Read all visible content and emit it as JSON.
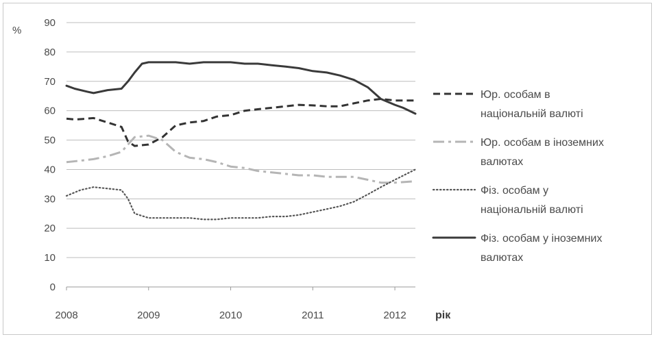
{
  "chart_data": {
    "type": "line",
    "title": "",
    "xlabel": "рік",
    "ylabel": "%",
    "xlim": [
      2008,
      2012.25
    ],
    "ylim": [
      0,
      90
    ],
    "y_ticks": [
      "0",
      "10",
      "20",
      "30",
      "40",
      "50",
      "60",
      "70",
      "80",
      "90"
    ],
    "x_ticks": [
      "2008",
      "2009",
      "2010",
      "2011",
      "2012"
    ],
    "grid": "horizontal",
    "legend_position": "right",
    "series": [
      {
        "name_lines": [
          "Юр. особам в",
          "національній валюті"
        ],
        "style": "dashed",
        "color": "#333333",
        "points": [
          [
            2008.0,
            57.3
          ],
          [
            2008.1,
            57.0
          ],
          [
            2008.2,
            57.2
          ],
          [
            2008.33,
            57.5
          ],
          [
            2008.5,
            56.0
          ],
          [
            2008.67,
            54.5
          ],
          [
            2008.75,
            49.5
          ],
          [
            2008.83,
            48.0
          ],
          [
            2009.0,
            48.5
          ],
          [
            2009.17,
            51.0
          ],
          [
            2009.33,
            55.0
          ],
          [
            2009.5,
            56.0
          ],
          [
            2009.67,
            56.5
          ],
          [
            2009.83,
            58.0
          ],
          [
            2010.0,
            58.5
          ],
          [
            2010.17,
            60.0
          ],
          [
            2010.33,
            60.5
          ],
          [
            2010.5,
            61.0
          ],
          [
            2010.67,
            61.5
          ],
          [
            2010.83,
            62.0
          ],
          [
            2011.0,
            61.8
          ],
          [
            2011.17,
            61.5
          ],
          [
            2011.33,
            61.5
          ],
          [
            2011.5,
            62.5
          ],
          [
            2011.67,
            63.5
          ],
          [
            2011.83,
            64.0
          ],
          [
            2012.0,
            63.5
          ],
          [
            2012.25,
            63.5
          ]
        ]
      },
      {
        "name_lines": [
          "Юр. особам в іноземних",
          "валютах"
        ],
        "style": "dash-dot",
        "color": "#b5b5b5",
        "points": [
          [
            2008.0,
            42.5
          ],
          [
            2008.17,
            43.0
          ],
          [
            2008.33,
            43.5
          ],
          [
            2008.5,
            44.5
          ],
          [
            2008.67,
            46.0
          ],
          [
            2008.83,
            51.0
          ],
          [
            2009.0,
            51.5
          ],
          [
            2009.17,
            50.0
          ],
          [
            2009.33,
            46.0
          ],
          [
            2009.5,
            44.0
          ],
          [
            2009.67,
            43.5
          ],
          [
            2009.83,
            42.5
          ],
          [
            2010.0,
            41.0
          ],
          [
            2010.17,
            40.5
          ],
          [
            2010.33,
            39.5
          ],
          [
            2010.5,
            39.0
          ],
          [
            2010.67,
            38.5
          ],
          [
            2010.83,
            38.0
          ],
          [
            2011.0,
            38.0
          ],
          [
            2011.17,
            37.5
          ],
          [
            2011.33,
            37.5
          ],
          [
            2011.5,
            37.5
          ],
          [
            2011.67,
            36.5
          ],
          [
            2011.83,
            35.5
          ],
          [
            2012.0,
            35.5
          ],
          [
            2012.25,
            36.0
          ]
        ]
      },
      {
        "name_lines": [
          "Фіз. особам у",
          "національній валюті"
        ],
        "style": "dotted",
        "color": "#555555",
        "points": [
          [
            2008.0,
            31.0
          ],
          [
            2008.17,
            33.0
          ],
          [
            2008.33,
            34.0
          ],
          [
            2008.5,
            33.5
          ],
          [
            2008.67,
            33.0
          ],
          [
            2008.75,
            30.0
          ],
          [
            2008.83,
            25.0
          ],
          [
            2009.0,
            23.5
          ],
          [
            2009.17,
            23.5
          ],
          [
            2009.33,
            23.5
          ],
          [
            2009.5,
            23.5
          ],
          [
            2009.67,
            23.0
          ],
          [
            2009.83,
            23.0
          ],
          [
            2010.0,
            23.5
          ],
          [
            2010.17,
            23.5
          ],
          [
            2010.33,
            23.5
          ],
          [
            2010.5,
            24.0
          ],
          [
            2010.67,
            24.0
          ],
          [
            2010.83,
            24.5
          ],
          [
            2011.0,
            25.5
          ],
          [
            2011.17,
            26.5
          ],
          [
            2011.33,
            27.5
          ],
          [
            2011.5,
            29.0
          ],
          [
            2011.67,
            31.5
          ],
          [
            2011.83,
            34.0
          ],
          [
            2012.0,
            36.5
          ],
          [
            2012.25,
            40.0
          ]
        ]
      },
      {
        "name_lines": [
          "Фіз. особам у іноземних",
          "валютах"
        ],
        "style": "solid",
        "color": "#3a3a3a",
        "points": [
          [
            2008.0,
            68.5
          ],
          [
            2008.1,
            67.5
          ],
          [
            2008.25,
            66.5
          ],
          [
            2008.33,
            66.0
          ],
          [
            2008.5,
            67.0
          ],
          [
            2008.67,
            67.5
          ],
          [
            2008.75,
            70.0
          ],
          [
            2008.83,
            73.0
          ],
          [
            2008.92,
            76.0
          ],
          [
            2009.0,
            76.5
          ],
          [
            2009.17,
            76.5
          ],
          [
            2009.33,
            76.5
          ],
          [
            2009.5,
            76.0
          ],
          [
            2009.67,
            76.5
          ],
          [
            2009.83,
            76.5
          ],
          [
            2010.0,
            76.5
          ],
          [
            2010.17,
            76.0
          ],
          [
            2010.33,
            76.0
          ],
          [
            2010.5,
            75.5
          ],
          [
            2010.67,
            75.0
          ],
          [
            2010.83,
            74.5
          ],
          [
            2011.0,
            73.5
          ],
          [
            2011.17,
            73.0
          ],
          [
            2011.33,
            72.0
          ],
          [
            2011.5,
            70.5
          ],
          [
            2011.67,
            68.0
          ],
          [
            2011.83,
            64.0
          ],
          [
            2012.0,
            62.0
          ],
          [
            2012.1,
            61.0
          ],
          [
            2012.25,
            59.0
          ]
        ]
      }
    ]
  }
}
